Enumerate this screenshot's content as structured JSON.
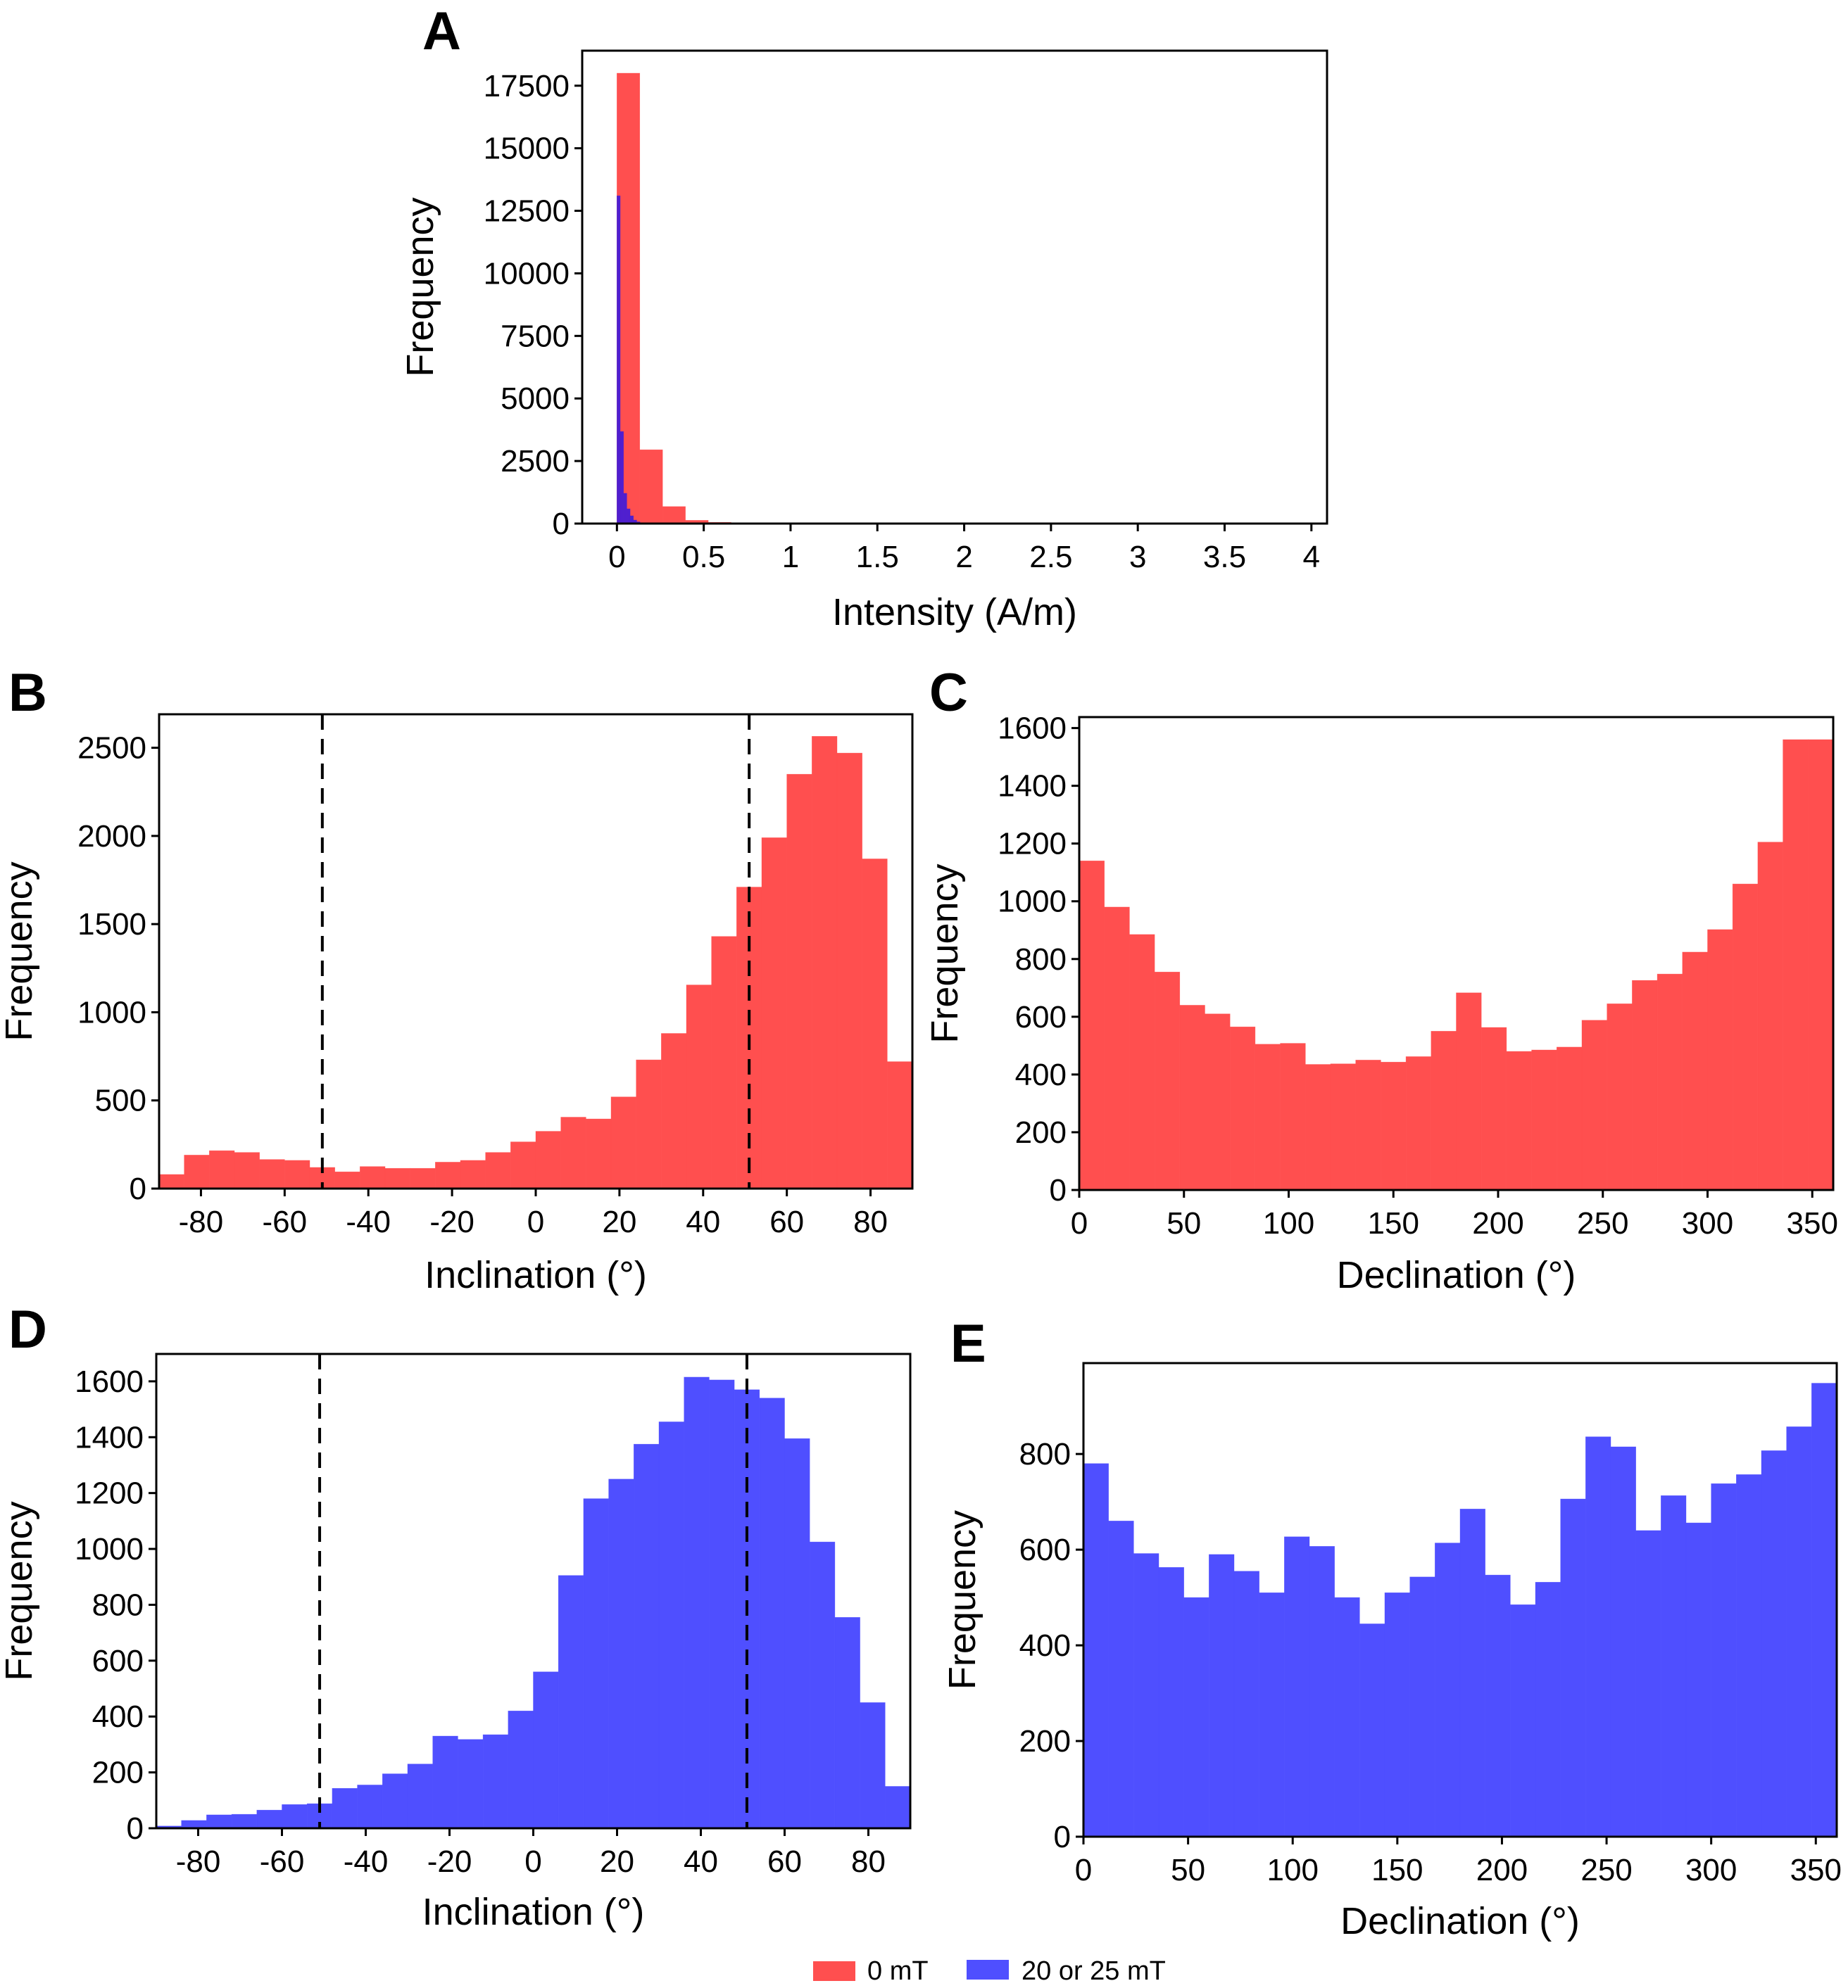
{
  "colors": {
    "zero_mT": "#ff4f4f",
    "af_mT": "#4f4fff",
    "overlap": "#4f1fcf"
  },
  "legend": [
    {
      "label": "0 mT",
      "color_key": "zero_mT"
    },
    {
      "label": "20 or 25 mT",
      "color_key": "af_mT"
    }
  ],
  "chart_data": [
    {
      "panel": "A",
      "type": "bar",
      "subtype": "histogram-overlay",
      "xlabel": "Intensity (A/m)",
      "ylabel": "Frequency",
      "xlim": [
        -0.2,
        4.09
      ],
      "ylim": [
        0,
        18900
      ],
      "xticks": [
        0,
        0.5,
        1,
        1.5,
        2,
        2.5,
        3,
        3.5,
        4
      ],
      "xtick_labels": [
        "0",
        "0.5",
        "1",
        "1.5",
        "2",
        "2.5",
        "3",
        "3.5",
        "4"
      ],
      "yticks": [
        0,
        2500,
        5000,
        7500,
        10000,
        12500,
        15000,
        17500
      ],
      "ytick_labels": [
        "0",
        "2500",
        "5000",
        "7500",
        "10000",
        "12500",
        "15000",
        "17500"
      ],
      "series": [
        {
          "name": "0 mT",
          "color_key": "zero_mT",
          "bin_start": 0,
          "bin_width": 0.1315,
          "values": [
            18000,
            2950,
            680,
            130,
            50,
            20,
            8,
            4,
            2,
            1,
            1,
            0,
            0,
            0,
            0,
            0,
            0,
            0,
            0,
            0,
            0,
            0,
            0,
            0,
            0,
            0,
            0,
            0,
            0,
            1
          ]
        },
        {
          "name": "20 or 25 mT",
          "color_key": "overlap",
          "bin_start": 0,
          "bin_width": 0.019,
          "values": [
            13100,
            3680,
            1210,
            590,
            310,
            140,
            70,
            30,
            15,
            8,
            4,
            2
          ]
        }
      ],
      "vlines": []
    },
    {
      "panel": "B",
      "type": "bar",
      "subtype": "histogram",
      "xlabel": "Inclination (°)",
      "ylabel": "Frequency",
      "xlim": [
        -90,
        90
      ],
      "ylim": [
        0,
        2690
      ],
      "xticks": [
        -80,
        -60,
        -40,
        -20,
        0,
        20,
        40,
        60,
        80
      ],
      "xtick_labels": [
        "-80",
        "-60",
        "-40",
        "-20",
        "0",
        "20",
        "40",
        "60",
        "80"
      ],
      "yticks": [
        0,
        500,
        1000,
        1500,
        2000,
        2500
      ],
      "ytick_labels": [
        "0",
        "500",
        "1000",
        "1500",
        "2000",
        "2500"
      ],
      "series": [
        {
          "name": "0 mT",
          "color_key": "zero_mT",
          "bin_start": -90,
          "bin_width": 6,
          "values": [
            80,
            190,
            215,
            205,
            165,
            160,
            120,
            95,
            125,
            115,
            115,
            150,
            160,
            205,
            265,
            325,
            405,
            395,
            520,
            730,
            880,
            1155,
            1430,
            1710,
            1990,
            2350,
            2565,
            2470,
            1870,
            720
          ]
        }
      ],
      "vlines": [
        -51,
        51
      ]
    },
    {
      "panel": "C",
      "type": "bar",
      "subtype": "histogram",
      "xlabel": "Declination (°)",
      "ylabel": "Frequency",
      "xlim": [
        0,
        360
      ],
      "ylim": [
        0,
        1638
      ],
      "xticks": [
        0,
        50,
        100,
        150,
        200,
        250,
        300,
        350
      ],
      "xtick_labels": [
        "0",
        "50",
        "100",
        "150",
        "200",
        "250",
        "300",
        "350"
      ],
      "yticks": [
        0,
        200,
        400,
        600,
        800,
        1000,
        1200,
        1400,
        1600
      ],
      "ytick_labels": [
        "0",
        "200",
        "400",
        "600",
        "800",
        "1000",
        "1200",
        "1400",
        "1600"
      ],
      "series": [
        {
          "name": "0 mT",
          "color_key": "zero_mT",
          "bin_start": 0,
          "bin_width": 12,
          "values": [
            1140,
            980,
            885,
            755,
            640,
            610,
            565,
            505,
            508,
            435,
            437,
            450,
            443,
            462,
            550,
            683,
            563,
            480,
            485,
            495,
            588,
            645,
            726,
            748,
            824,
            902,
            1060,
            1205,
            1560,
            1560
          ]
        }
      ],
      "vlines": []
    },
    {
      "panel": "D",
      "type": "bar",
      "subtype": "histogram",
      "xlabel": "Inclination (°)",
      "ylabel": "Frequency",
      "xlim": [
        -90,
        90
      ],
      "ylim": [
        0,
        1698
      ],
      "xticks": [
        -80,
        -60,
        -40,
        -20,
        0,
        20,
        40,
        60,
        80
      ],
      "xtick_labels": [
        "-80",
        "-60",
        "-40",
        "-20",
        "0",
        "20",
        "40",
        "60",
        "80"
      ],
      "yticks": [
        0,
        200,
        400,
        600,
        800,
        1000,
        1200,
        1400,
        1600
      ],
      "ytick_labels": [
        "0",
        "200",
        "400",
        "600",
        "800",
        "1000",
        "1200",
        "1400",
        "1600"
      ],
      "series": [
        {
          "name": "20 or 25 mT",
          "color_key": "af_mT",
          "bin_start": -90,
          "bin_width": 6,
          "values": [
            8,
            28,
            48,
            50,
            65,
            85,
            88,
            143,
            155,
            195,
            230,
            330,
            318,
            335,
            420,
            560,
            905,
            1180,
            1250,
            1375,
            1455,
            1615,
            1605,
            1570,
            1540,
            1395,
            1025,
            755,
            450,
            150
          ]
        }
      ],
      "vlines": [
        -51,
        51
      ]
    },
    {
      "panel": "E",
      "type": "bar",
      "subtype": "histogram",
      "xlabel": "Declination (°)",
      "ylabel": "Frequency",
      "xlim": [
        0,
        360
      ],
      "ylim": [
        0,
        990
      ],
      "xticks": [
        0,
        50,
        100,
        150,
        200,
        250,
        300,
        350
      ],
      "xtick_labels": [
        "0",
        "50",
        "100",
        "150",
        "200",
        "250",
        "300",
        "350"
      ],
      "yticks": [
        0,
        200,
        400,
        600,
        800
      ],
      "ytick_labels": [
        "0",
        "200",
        "400",
        "600",
        "800"
      ],
      "series": [
        {
          "name": "20 or 25 mT",
          "color_key": "af_mT",
          "bin_start": 0,
          "bin_width": 12,
          "values": [
            780,
            660,
            592,
            563,
            500,
            590,
            555,
            510,
            627,
            607,
            500,
            445,
            510,
            543,
            614,
            685,
            547,
            485,
            532,
            706,
            836,
            815,
            640,
            713,
            656,
            738,
            757,
            807,
            857,
            948
          ]
        }
      ],
      "vlines": []
    }
  ]
}
